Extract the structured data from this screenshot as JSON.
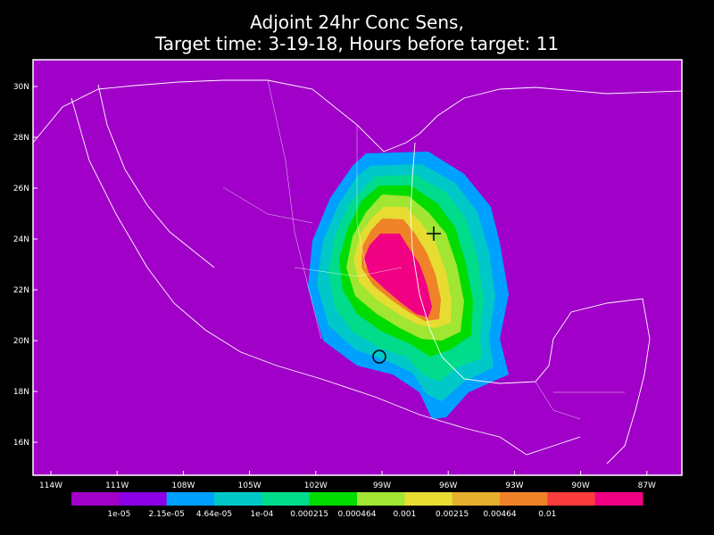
{
  "title": [
    "Adjoint 24hr Conc Sens,",
    "Target time: 3-19-18, Hours before target: 11"
  ],
  "lat_labels": [
    "30N",
    "28N",
    "26N",
    "24N",
    "22N",
    "20N",
    "18N",
    "16N"
  ],
  "lon_labels": [
    "114W",
    "111W",
    "108W",
    "105W",
    "102W",
    "99W",
    "96W",
    "93W",
    "90W",
    "87W"
  ],
  "colorbar": {
    "colors": [
      "#a000c8",
      "#8c00e6",
      "#00a0ff",
      "#00c8c8",
      "#00dc8c",
      "#00dc00",
      "#a0e632",
      "#e6dc32",
      "#e6af2d",
      "#f08228",
      "#fa3c3c",
      "#f00082"
    ],
    "labels": [
      "1e-05",
      "2.15e-05",
      "4.64e-05",
      "1e-04",
      "0.000215",
      "0.000464",
      "0.001",
      "0.00215",
      "0.00464",
      "0.01"
    ]
  }
}
